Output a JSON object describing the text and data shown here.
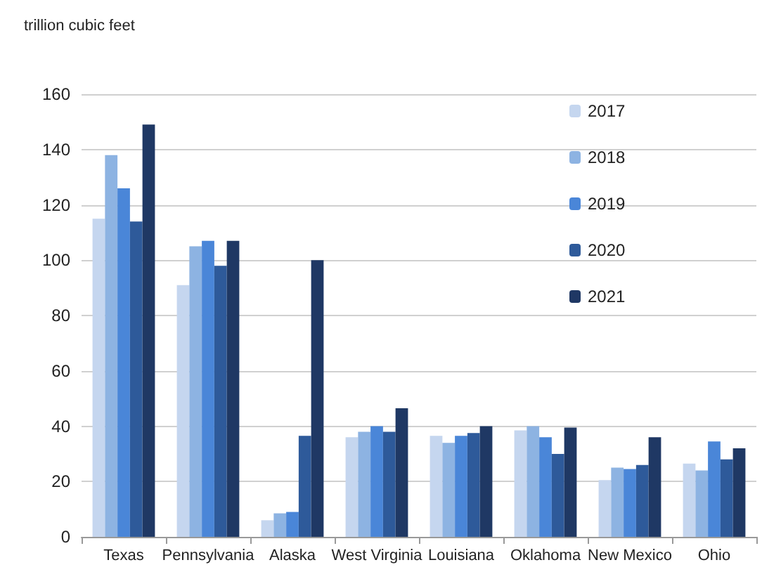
{
  "chart_data": {
    "type": "bar",
    "ylabel": "trillion cubic feet",
    "categories": [
      "Texas",
      "Pennsylvania",
      "Alaska",
      "West Virginia",
      "Louisiana",
      "Oklahoma",
      "New Mexico",
      "Ohio"
    ],
    "series": [
      {
        "name": "2017",
        "color": "#c5d6ef",
        "values": [
          115,
          91,
          6,
          36,
          36.5,
          38.5,
          20.5,
          26.5
        ]
      },
      {
        "name": "2018",
        "color": "#8db3e2",
        "values": [
          138,
          105,
          8.5,
          38,
          34,
          40,
          25,
          24
        ]
      },
      {
        "name": "2019",
        "color": "#4a86d8",
        "values": [
          126,
          107,
          9,
          40,
          36.5,
          36,
          24.5,
          34.5
        ]
      },
      {
        "name": "2020",
        "color": "#2e5a9a",
        "values": [
          114,
          98,
          36.5,
          38,
          37.5,
          30,
          26,
          28
        ]
      },
      {
        "name": "2021",
        "color": "#1f3864",
        "values": [
          149,
          107,
          100,
          46.5,
          40,
          39.5,
          36,
          32
        ]
      }
    ],
    "ylim": [
      0,
      160
    ],
    "yticks": [
      0,
      20,
      40,
      60,
      80,
      100,
      120,
      140,
      160
    ],
    "grid": "y",
    "legend": "top right"
  }
}
